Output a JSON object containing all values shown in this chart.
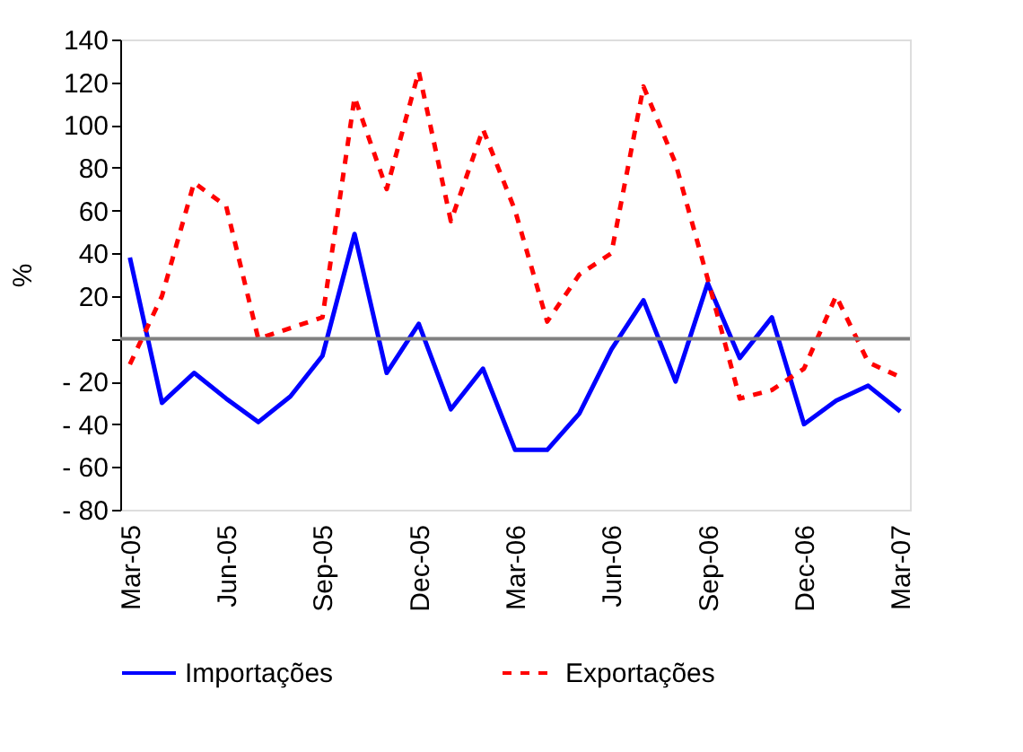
{
  "chart_data": {
    "type": "line",
    "ylabel": "%",
    "categories": [
      "Mar-05",
      null,
      null,
      "Jun-05",
      null,
      null,
      "Sep-05",
      null,
      null,
      "Dec-05",
      null,
      null,
      "Mar-06",
      null,
      null,
      "Jun-06",
      null,
      null,
      "Sep-06",
      null,
      null,
      "Dec-06",
      null,
      null,
      "Mar-07"
    ],
    "series": [
      {
        "name": "Importações",
        "color": "#0000ff",
        "line_style": "solid",
        "values": [
          38,
          -30,
          -16,
          -28,
          -39,
          -27,
          -8,
          49,
          -16,
          7,
          -33,
          -14,
          -52,
          -52,
          -35,
          -5,
          18,
          -20,
          26,
          -9,
          10,
          -40,
          -29,
          -22,
          -34
        ]
      },
      {
        "name": "Exportações",
        "color": "#ff0000",
        "line_style": "dashed",
        "values": [
          -12,
          20,
          73,
          62,
          0,
          5,
          10,
          113,
          70,
          125,
          55,
          98,
          60,
          8,
          30,
          40,
          118,
          82,
          28,
          -28,
          -24,
          -14,
          20,
          -11,
          -18
        ]
      }
    ],
    "ylim": [
      -80,
      140
    ],
    "yticks": [
      {
        "value": -80,
        "label": "- 80"
      },
      {
        "value": -60,
        "label": "- 60"
      },
      {
        "value": -40,
        "label": "- 40"
      },
      {
        "value": -20,
        "label": "- 20"
      },
      {
        "value": 0,
        "label": null
      },
      20,
      40,
      60,
      80,
      100,
      120,
      140
    ],
    "ref_lines": [
      {
        "axis": "y",
        "value": 0,
        "color": "#808080"
      }
    ],
    "grid": false,
    "legend": "bottom",
    "marker": "none"
  }
}
